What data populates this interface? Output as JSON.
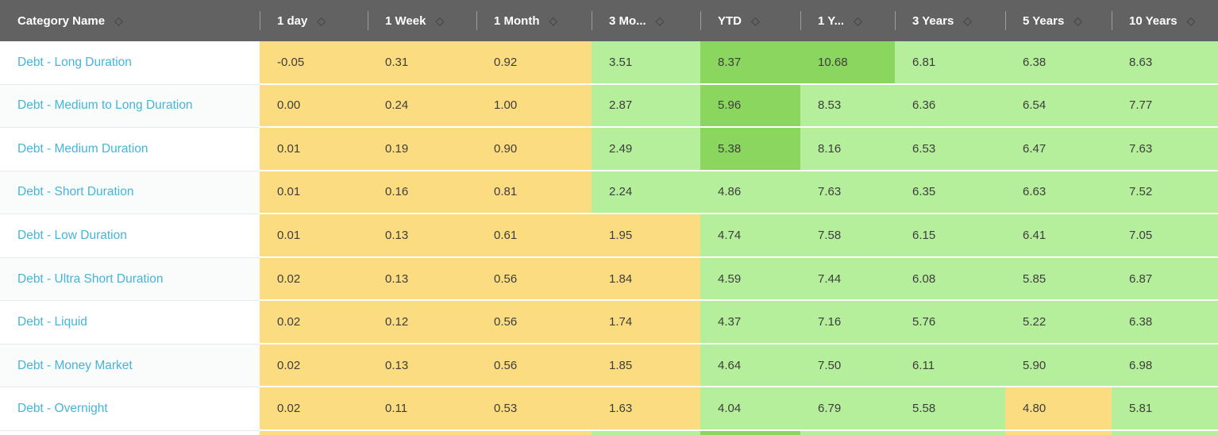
{
  "table": {
    "icons": {
      "sort": "◇"
    },
    "colors": {
      "header_bg": "#626262",
      "header_text": "#ffffff",
      "link": "#45b5d8",
      "low": "#fbdc80",
      "mid": "#b5ef9b",
      "high": "#8bd65f"
    },
    "columns": [
      {
        "label": "Category Name",
        "sortable": true
      },
      {
        "label": "1 day",
        "sortable": true
      },
      {
        "label": "1 Week",
        "sortable": true
      },
      {
        "label": "1 Month",
        "sortable": true
      },
      {
        "label": "3 Mo...",
        "sortable": true
      },
      {
        "label": "YTD",
        "sortable": true
      },
      {
        "label": "1 Y...",
        "sortable": true
      },
      {
        "label": "3 Years",
        "sortable": true
      },
      {
        "label": "5 Years",
        "sortable": true
      },
      {
        "label": "10 Years",
        "sortable": true
      }
    ],
    "rows": [
      {
        "category": "Debt - Long Duration",
        "values": [
          "-0.05",
          "0.31",
          "0.92",
          "3.51",
          "8.37",
          "10.68",
          "6.81",
          "6.38",
          "8.63"
        ],
        "levels": [
          "low",
          "low",
          "low",
          "mid",
          "high",
          "high",
          "mid",
          "mid",
          "mid"
        ]
      },
      {
        "category": "Debt - Medium to Long Duration",
        "values": [
          "0.00",
          "0.24",
          "1.00",
          "2.87",
          "5.96",
          "8.53",
          "6.36",
          "6.54",
          "7.77"
        ],
        "levels": [
          "low",
          "low",
          "low",
          "mid",
          "high",
          "mid",
          "mid",
          "mid",
          "mid"
        ]
      },
      {
        "category": "Debt - Medium Duration",
        "values": [
          "0.01",
          "0.19",
          "0.90",
          "2.49",
          "5.38",
          "8.16",
          "6.53",
          "6.47",
          "7.63"
        ],
        "levels": [
          "low",
          "low",
          "low",
          "mid",
          "high",
          "mid",
          "mid",
          "mid",
          "mid"
        ]
      },
      {
        "category": "Debt - Short Duration",
        "values": [
          "0.01",
          "0.16",
          "0.81",
          "2.24",
          "4.86",
          "7.63",
          "6.35",
          "6.63",
          "7.52"
        ],
        "levels": [
          "low",
          "low",
          "low",
          "mid",
          "mid",
          "mid",
          "mid",
          "mid",
          "mid"
        ]
      },
      {
        "category": "Debt - Low Duration",
        "values": [
          "0.01",
          "0.13",
          "0.61",
          "1.95",
          "4.74",
          "7.58",
          "6.15",
          "6.41",
          "7.05"
        ],
        "levels": [
          "low",
          "low",
          "low",
          "low",
          "mid",
          "mid",
          "mid",
          "mid",
          "mid"
        ]
      },
      {
        "category": "Debt - Ultra Short Duration",
        "values": [
          "0.02",
          "0.13",
          "0.56",
          "1.84",
          "4.59",
          "7.44",
          "6.08",
          "5.85",
          "6.87"
        ],
        "levels": [
          "low",
          "low",
          "low",
          "low",
          "mid",
          "mid",
          "mid",
          "mid",
          "mid"
        ]
      },
      {
        "category": "Debt - Liquid",
        "values": [
          "0.02",
          "0.12",
          "0.56",
          "1.74",
          "4.37",
          "7.16",
          "5.76",
          "5.22",
          "6.38"
        ],
        "levels": [
          "low",
          "low",
          "low",
          "low",
          "mid",
          "mid",
          "mid",
          "mid",
          "mid"
        ]
      },
      {
        "category": "Debt - Money Market",
        "values": [
          "0.02",
          "0.13",
          "0.56",
          "1.85",
          "4.64",
          "7.50",
          "6.11",
          "5.90",
          "6.98"
        ],
        "levels": [
          "low",
          "low",
          "low",
          "low",
          "mid",
          "mid",
          "mid",
          "mid",
          "mid"
        ]
      },
      {
        "category": "Debt - Overnight",
        "values": [
          "0.02",
          "0.11",
          "0.53",
          "1.63",
          "4.04",
          "6.79",
          "5.58",
          "4.80",
          "5.81"
        ],
        "levels": [
          "low",
          "low",
          "low",
          "low",
          "mid",
          "mid",
          "mid",
          "low",
          "mid"
        ]
      }
    ],
    "partial_row_levels": [
      "low",
      "low",
      "low",
      "mid",
      "high",
      "mid",
      "mid",
      "low",
      "mid"
    ]
  }
}
